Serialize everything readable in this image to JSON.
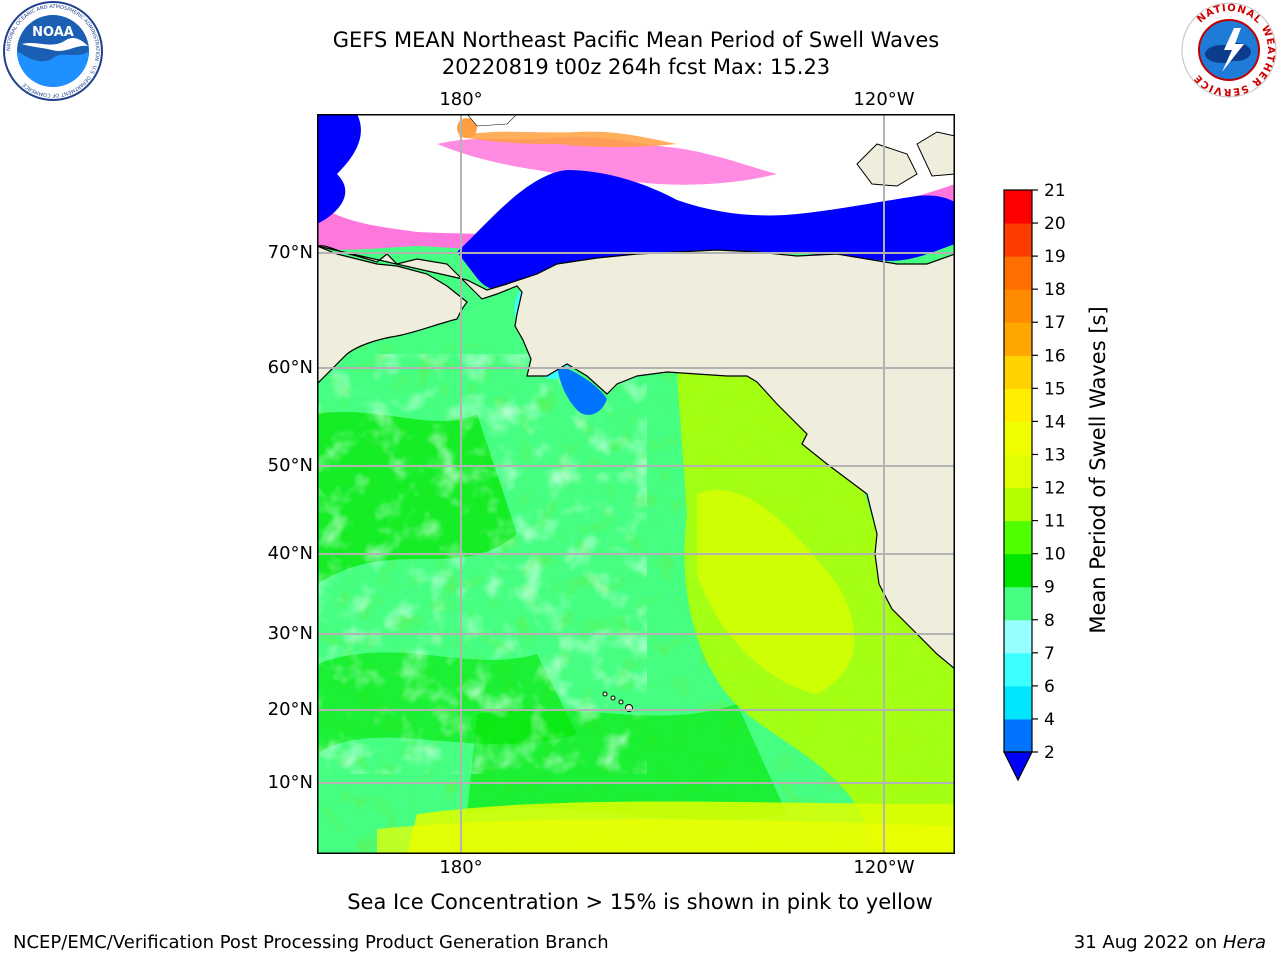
{
  "title": {
    "line1": "GEFS MEAN Northeast Pacific Mean Period of Swell Waves",
    "line2": "20220819 t00z 264h fcst   Max: 15.23"
  },
  "logos": {
    "left": "noaa-logo",
    "left_text": "NOAA",
    "left_ring_text": "NATIONAL OCEANIC AND ATMOSPHERIC ADMINISTRATION · U.S. DEPARTMENT OF COMMERCE",
    "right": "nws-logo",
    "right_ring_text": "NATIONAL WEATHER SERVICE"
  },
  "map": {
    "lon_labels": [
      "180°",
      "120°W"
    ],
    "lat_labels": [
      "70°N",
      "60°N",
      "50°N",
      "40°N",
      "30°N",
      "20°N",
      "10°N"
    ],
    "colors": {
      "land": "#efeddc",
      "ice_pink": "#ff77dd",
      "ice_orange": "#ffa040",
      "grid": "#b3b3b3"
    }
  },
  "colorbar": {
    "label": "Mean Period of Swell Waves [s]",
    "ticks": [
      "2",
      "4",
      "6",
      "7",
      "8",
      "9",
      "10",
      "11",
      "12",
      "13",
      "14",
      "15",
      "16",
      "17",
      "18",
      "19",
      "20",
      "21"
    ],
    "colors": [
      "#0073ff",
      "#00e6ff",
      "#3cffff",
      "#96ffff",
      "#46ff82",
      "#00e600",
      "#50ff00",
      "#b4ff00",
      "#e1ff00",
      "#f0ff00",
      "#ffee00",
      "#ffd200",
      "#ffa500",
      "#ff8c00",
      "#ff6e00",
      "#ff3c00",
      "#ff0000"
    ],
    "under_color": "#0000ff"
  },
  "footnote": "Sea Ice Concentration > 15% is shown in pink to yellow",
  "credit_left": "NCEP/EMC/Verification Post Processing Product Generation Branch",
  "credit_right_date": "31 Aug 2022 on ",
  "credit_right_host": "Hera"
}
